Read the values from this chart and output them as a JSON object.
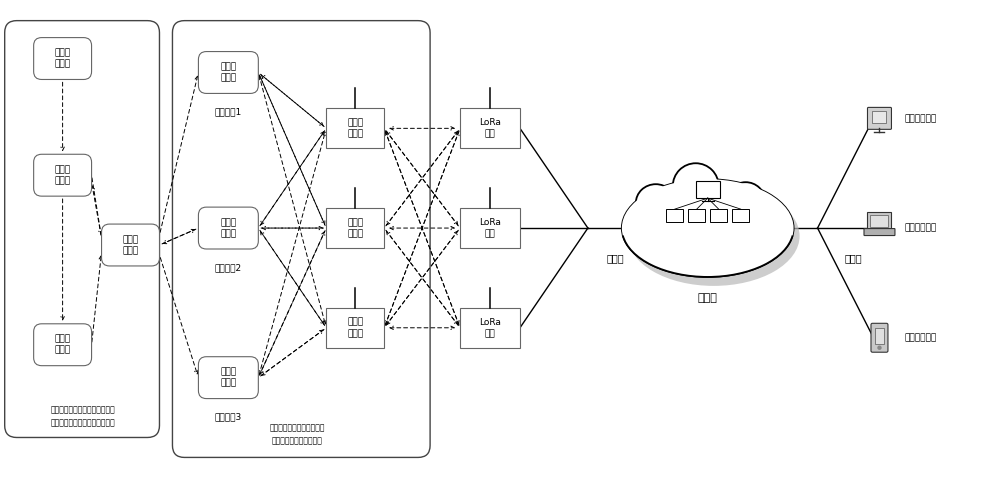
{
  "bg_color": "#ffffff",
  "rounded_box_label": "救援节\n点终端",
  "square_box_label": "入网节\n点终端",
  "lora_box_label": "LoRa\n网关",
  "remote_label": "远程信息终端",
  "server_label": "服务器",
  "internet_label1": "互联网",
  "internet_label2": "互联网",
  "rescuer_labels": [
    "搜援人员1",
    "搜援人则2",
    "搜援人则3"
  ],
  "caption_left": "呼救人员携带救援节点终端，在\n野外自救时记录自己的活动轨迹",
  "caption_mid": "搜救人员携带入网节点终端\n和救援节点终端开展救援"
}
